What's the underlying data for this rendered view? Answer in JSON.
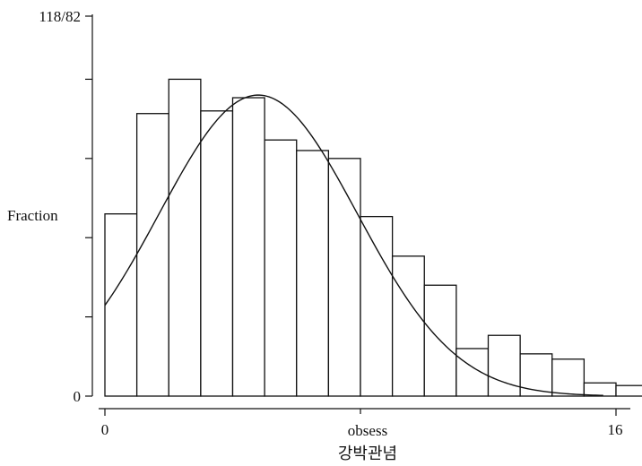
{
  "chart_data": {
    "type": "bar",
    "subtype": "histogram-with-density-curve",
    "ylabel": "Fraction",
    "xlabel": "obsess",
    "caption": "강박관념",
    "xlim": [
      0,
      16
    ],
    "ylim": [
      0,
      0.1439
    ],
    "x_tick_labels": [
      "0",
      "16"
    ],
    "y_tick_labels": [
      "0",
      "118/82"
    ],
    "y_minor_ticks": [
      0.03,
      0.06,
      0.09,
      0.12
    ],
    "bin_width": 1,
    "bins": [
      {
        "x0": 0,
        "x1": 1,
        "value": 0.069
      },
      {
        "x0": 1,
        "x1": 2,
        "value": 0.107
      },
      {
        "x0": 2,
        "x1": 3,
        "value": 0.12
      },
      {
        "x0": 3,
        "x1": 4,
        "value": 0.108
      },
      {
        "x0": 4,
        "x1": 5,
        "value": 0.113
      },
      {
        "x0": 5,
        "x1": 6,
        "value": 0.097
      },
      {
        "x0": 6,
        "x1": 7,
        "value": 0.093
      },
      {
        "x0": 7,
        "x1": 8,
        "value": 0.09
      },
      {
        "x0": 8,
        "x1": 9,
        "value": 0.068
      },
      {
        "x0": 9,
        "x1": 10,
        "value": 0.053
      },
      {
        "x0": 10,
        "x1": 11,
        "value": 0.042
      },
      {
        "x0": 11,
        "x1": 12,
        "value": 0.018
      },
      {
        "x0": 12,
        "x1": 13,
        "value": 0.023
      },
      {
        "x0": 13,
        "x1": 14,
        "value": 0.016
      },
      {
        "x0": 14,
        "x1": 15,
        "value": 0.014
      },
      {
        "x0": 15,
        "x1": 16,
        "value": 0.005
      },
      {
        "x0": 16,
        "x1": 17,
        "value": 0.004
      }
    ],
    "curve": {
      "name": "normal density",
      "mean": 4.8,
      "sd": 3.1,
      "scale": 0.114,
      "x_range": [
        0,
        15.6
      ]
    },
    "grid": false,
    "colors": {
      "bar_fill": "#ffffff",
      "bar_stroke": "#111111",
      "curve": "#111111",
      "axis": "#111111"
    }
  }
}
